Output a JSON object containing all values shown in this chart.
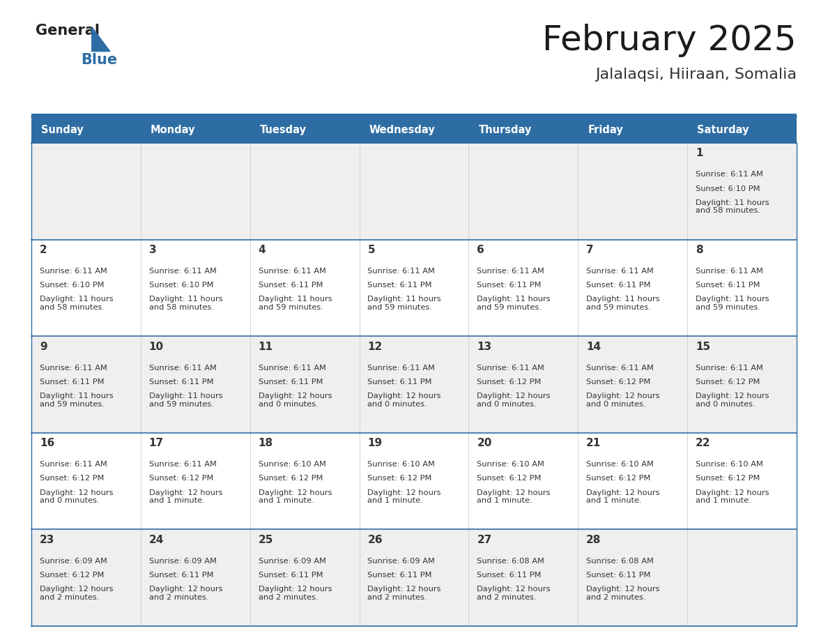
{
  "title": "February 2025",
  "subtitle": "Jalalaqsi, Hiiraan, Somalia",
  "days_of_week": [
    "Sunday",
    "Monday",
    "Tuesday",
    "Wednesday",
    "Thursday",
    "Friday",
    "Saturday"
  ],
  "header_bg": "#2E6DA4",
  "header_text": "#FFFFFF",
  "cell_bg_odd": "#EFEFEF",
  "cell_bg_even": "#FFFFFF",
  "border_color": "#2E6DA4",
  "text_color": "#333333",
  "day_num_color": "#333333",
  "calendar_data": [
    [
      {
        "day": null,
        "sunrise": null,
        "sunset": null,
        "daylight": null
      },
      {
        "day": null,
        "sunrise": null,
        "sunset": null,
        "daylight": null
      },
      {
        "day": null,
        "sunrise": null,
        "sunset": null,
        "daylight": null
      },
      {
        "day": null,
        "sunrise": null,
        "sunset": null,
        "daylight": null
      },
      {
        "day": null,
        "sunrise": null,
        "sunset": null,
        "daylight": null
      },
      {
        "day": null,
        "sunrise": null,
        "sunset": null,
        "daylight": null
      },
      {
        "day": 1,
        "sunrise": "6:11 AM",
        "sunset": "6:10 PM",
        "daylight": "11 hours\nand 58 minutes."
      }
    ],
    [
      {
        "day": 2,
        "sunrise": "6:11 AM",
        "sunset": "6:10 PM",
        "daylight": "11 hours\nand 58 minutes."
      },
      {
        "day": 3,
        "sunrise": "6:11 AM",
        "sunset": "6:10 PM",
        "daylight": "11 hours\nand 58 minutes."
      },
      {
        "day": 4,
        "sunrise": "6:11 AM",
        "sunset": "6:11 PM",
        "daylight": "11 hours\nand 59 minutes."
      },
      {
        "day": 5,
        "sunrise": "6:11 AM",
        "sunset": "6:11 PM",
        "daylight": "11 hours\nand 59 minutes."
      },
      {
        "day": 6,
        "sunrise": "6:11 AM",
        "sunset": "6:11 PM",
        "daylight": "11 hours\nand 59 minutes."
      },
      {
        "day": 7,
        "sunrise": "6:11 AM",
        "sunset": "6:11 PM",
        "daylight": "11 hours\nand 59 minutes."
      },
      {
        "day": 8,
        "sunrise": "6:11 AM",
        "sunset": "6:11 PM",
        "daylight": "11 hours\nand 59 minutes."
      }
    ],
    [
      {
        "day": 9,
        "sunrise": "6:11 AM",
        "sunset": "6:11 PM",
        "daylight": "11 hours\nand 59 minutes."
      },
      {
        "day": 10,
        "sunrise": "6:11 AM",
        "sunset": "6:11 PM",
        "daylight": "11 hours\nand 59 minutes."
      },
      {
        "day": 11,
        "sunrise": "6:11 AM",
        "sunset": "6:11 PM",
        "daylight": "12 hours\nand 0 minutes."
      },
      {
        "day": 12,
        "sunrise": "6:11 AM",
        "sunset": "6:11 PM",
        "daylight": "12 hours\nand 0 minutes."
      },
      {
        "day": 13,
        "sunrise": "6:11 AM",
        "sunset": "6:12 PM",
        "daylight": "12 hours\nand 0 minutes."
      },
      {
        "day": 14,
        "sunrise": "6:11 AM",
        "sunset": "6:12 PM",
        "daylight": "12 hours\nand 0 minutes."
      },
      {
        "day": 15,
        "sunrise": "6:11 AM",
        "sunset": "6:12 PM",
        "daylight": "12 hours\nand 0 minutes."
      }
    ],
    [
      {
        "day": 16,
        "sunrise": "6:11 AM",
        "sunset": "6:12 PM",
        "daylight": "12 hours\nand 0 minutes."
      },
      {
        "day": 17,
        "sunrise": "6:11 AM",
        "sunset": "6:12 PM",
        "daylight": "12 hours\nand 1 minute."
      },
      {
        "day": 18,
        "sunrise": "6:10 AM",
        "sunset": "6:12 PM",
        "daylight": "12 hours\nand 1 minute."
      },
      {
        "day": 19,
        "sunrise": "6:10 AM",
        "sunset": "6:12 PM",
        "daylight": "12 hours\nand 1 minute."
      },
      {
        "day": 20,
        "sunrise": "6:10 AM",
        "sunset": "6:12 PM",
        "daylight": "12 hours\nand 1 minute."
      },
      {
        "day": 21,
        "sunrise": "6:10 AM",
        "sunset": "6:12 PM",
        "daylight": "12 hours\nand 1 minute."
      },
      {
        "day": 22,
        "sunrise": "6:10 AM",
        "sunset": "6:12 PM",
        "daylight": "12 hours\nand 1 minute."
      }
    ],
    [
      {
        "day": 23,
        "sunrise": "6:09 AM",
        "sunset": "6:12 PM",
        "daylight": "12 hours\nand 2 minutes."
      },
      {
        "day": 24,
        "sunrise": "6:09 AM",
        "sunset": "6:11 PM",
        "daylight": "12 hours\nand 2 minutes."
      },
      {
        "day": 25,
        "sunrise": "6:09 AM",
        "sunset": "6:11 PM",
        "daylight": "12 hours\nand 2 minutes."
      },
      {
        "day": 26,
        "sunrise": "6:09 AM",
        "sunset": "6:11 PM",
        "daylight": "12 hours\nand 2 minutes."
      },
      {
        "day": 27,
        "sunrise": "6:08 AM",
        "sunset": "6:11 PM",
        "daylight": "12 hours\nand 2 minutes."
      },
      {
        "day": 28,
        "sunrise": "6:08 AM",
        "sunset": "6:11 PM",
        "daylight": "12 hours\nand 2 minutes."
      },
      {
        "day": null,
        "sunrise": null,
        "sunset": null,
        "daylight": null
      }
    ]
  ]
}
